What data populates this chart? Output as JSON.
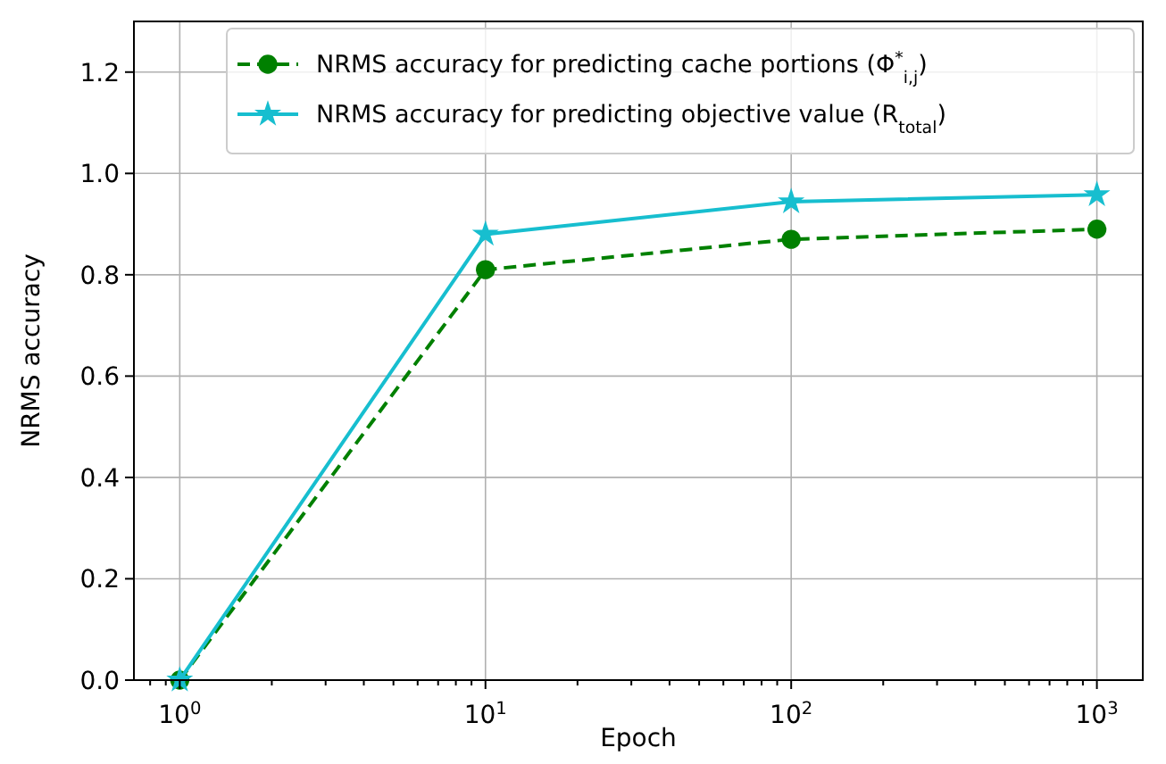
{
  "chart_data": {
    "type": "line",
    "xlabel": "Epoch",
    "ylabel": "NRMS accuracy",
    "log": "x",
    "x": [
      1,
      10,
      100,
      1000
    ],
    "xlim": [
      0.708,
      1413
    ],
    "xticks": [
      {
        "value": 1,
        "label": "10$^{0}$"
      },
      {
        "value": 10,
        "label": "10$^{1}$"
      },
      {
        "value": 100,
        "label": "10$^{2}$"
      },
      {
        "value": 1000,
        "label": "10$^{3}$"
      },
      {
        "value": 0.8,
        "label": null
      },
      {
        "value": 0.9,
        "label": null
      },
      {
        "value": 2,
        "label": null
      },
      {
        "value": 3,
        "label": null
      },
      {
        "value": 4,
        "label": null
      },
      {
        "value": 5,
        "label": null
      },
      {
        "value": 6,
        "label": null
      },
      {
        "value": 7,
        "label": null
      },
      {
        "value": 8,
        "label": null
      },
      {
        "value": 9,
        "label": null
      },
      {
        "value": 20,
        "label": null
      },
      {
        "value": 30,
        "label": null
      },
      {
        "value": 40,
        "label": null
      },
      {
        "value": 50,
        "label": null
      },
      {
        "value": 60,
        "label": null
      },
      {
        "value": 70,
        "label": null
      },
      {
        "value": 80,
        "label": null
      },
      {
        "value": 90,
        "label": null
      },
      {
        "value": 200,
        "label": null
      },
      {
        "value": 300,
        "label": null
      },
      {
        "value": 400,
        "label": null
      },
      {
        "value": 500,
        "label": null
      },
      {
        "value": 600,
        "label": null
      },
      {
        "value": 700,
        "label": null
      },
      {
        "value": 800,
        "label": null
      },
      {
        "value": 900,
        "label": null
      }
    ],
    "ylim": [
      0,
      1.3
    ],
    "yticks": [
      {
        "value": 0,
        "label": "0.0"
      },
      {
        "value": 0.2,
        "label": "0.2"
      },
      {
        "value": 0.4,
        "label": "0.4"
      },
      {
        "value": 0.6,
        "label": "0.6"
      },
      {
        "value": 0.8,
        "label": "0.8"
      },
      {
        "value": 1,
        "label": "1.0"
      },
      {
        "value": 1.2,
        "label": "1.2"
      }
    ],
    "grid": true,
    "legend": "top right",
    "series": [
      {
        "name": "NRMS accuracy for predicting cache portions (Φ$^{*}$$_{i,j}$)",
        "color": "#008000",
        "values": [
          0,
          0.81,
          0.87,
          0.89
        ],
        "marker": "circle",
        "line_style": "dashed"
      },
      {
        "name": "NRMS accuracy for predicting objective value (R$_{total}$)",
        "color": "#17becf",
        "values": [
          0,
          0.88,
          0.944,
          0.958
        ],
        "marker": "star",
        "line_style": "solid"
      }
    ]
  }
}
